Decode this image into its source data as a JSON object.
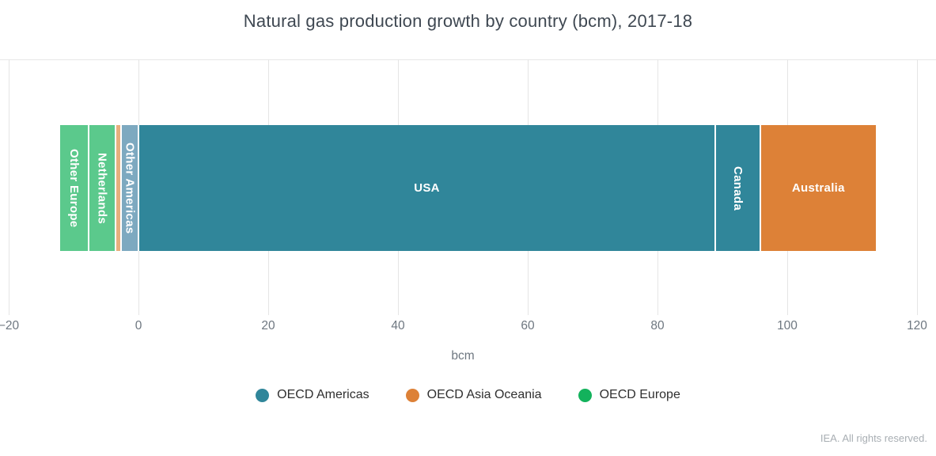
{
  "title": "Natural gas production growth by country (bcm), 2017-18",
  "footer": "IEA. All rights reserved.",
  "colors": {
    "teal": "#30869a",
    "light_teal": "#7da9c0",
    "orange": "#dd8137",
    "light_orange": "#e8af7d",
    "green": "#5bc98c",
    "legend_green": "#13b25c",
    "grid": "#e5e5e5",
    "tick_text": "#6e7780",
    "title_text": "#3f4852"
  },
  "chart_data": {
    "type": "bar",
    "orientation": "horizontal-stacked",
    "title": "Natural gas production growth by country (bcm), 2017-18",
    "xlabel": "bcm",
    "grid": true,
    "axis": {
      "min": -20,
      "max": 120,
      "ticks": [
        -20,
        0,
        20,
        40,
        60,
        80,
        100,
        120
      ],
      "tick_labels": [
        "−20",
        "0",
        "20",
        "40",
        "60",
        "80",
        "100",
        "120"
      ]
    },
    "segments": [
      {
        "label": "Other Europe",
        "series": "OECD Europe",
        "value": -4.5,
        "color": "#5bc98c",
        "label_orientation": "vertical"
      },
      {
        "label": "Netherlands",
        "series": "OECD Europe",
        "value": -4.2,
        "color": "#5bc98c",
        "label_orientation": "vertical"
      },
      {
        "label": "",
        "series": "OECD Asia Oceania",
        "value": -0.8,
        "color": "#e8af7d",
        "label_orientation": "none"
      },
      {
        "label": "Other Americas",
        "series": "OECD Americas",
        "value": -2.7,
        "color": "#7da9c0",
        "label_orientation": "vertical"
      },
      {
        "label": "USA",
        "series": "OECD Americas",
        "value": 88.9,
        "color": "#30869a",
        "label_orientation": "horizontal"
      },
      {
        "label": "Canada",
        "series": "OECD Americas",
        "value": 6.9,
        "color": "#30869a",
        "label_orientation": "vertical"
      },
      {
        "label": "Australia",
        "series": "OECD Asia Oceania",
        "value": 18.0,
        "color": "#dd8137",
        "label_orientation": "horizontal"
      }
    ],
    "legend": {
      "position": "bottom",
      "entries": [
        {
          "label": "OECD Americas",
          "color": "#30869a"
        },
        {
          "label": "OECD Asia Oceania",
          "color": "#dd8137"
        },
        {
          "label": "OECD Europe",
          "color": "#13b25c"
        }
      ]
    }
  }
}
